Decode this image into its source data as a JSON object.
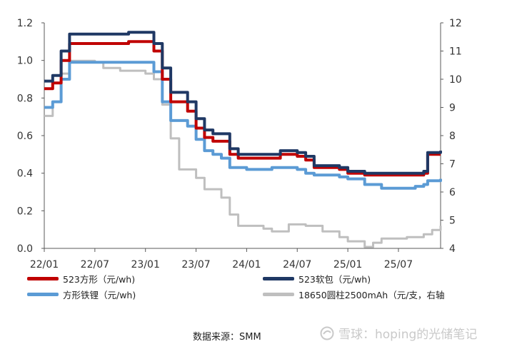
{
  "chart_data": {
    "type": "line",
    "x_ticks": [
      "22/01",
      "22/07",
      "23/01",
      "23/07",
      "24/01",
      "24/07",
      "25/01",
      "25/07"
    ],
    "x_start": "2022-01",
    "x_end": "2025-12",
    "y_left": {
      "ylim": [
        0,
        1.2
      ],
      "ticks": [
        "0.0",
        "0.2",
        "0.4",
        "0.6",
        "0.8",
        "1.0",
        "1.2"
      ]
    },
    "y_right": {
      "ylim": [
        4,
        12
      ],
      "ticks": [
        "4",
        "5",
        "6",
        "7",
        "8",
        "9",
        "10",
        "11",
        "12"
      ]
    },
    "grid": false,
    "legend_placement": "bottom",
    "series": [
      {
        "name": "523方形（元/wh)",
        "color": "#c00000",
        "axis": "left",
        "points": [
          [
            "2022-01",
            0.85
          ],
          [
            "2022-02",
            0.88
          ],
          [
            "2022-03",
            1.0
          ],
          [
            "2022-04",
            1.09
          ],
          [
            "2022-06",
            1.09
          ],
          [
            "2022-09",
            1.09
          ],
          [
            "2022-11",
            1.1
          ],
          [
            "2023-01",
            1.1
          ],
          [
            "2023-02",
            1.05
          ],
          [
            "2023-03",
            0.9
          ],
          [
            "2023-04",
            0.78
          ],
          [
            "2023-06",
            0.73
          ],
          [
            "2023-07",
            0.64
          ],
          [
            "2023-08",
            0.59
          ],
          [
            "2023-09",
            0.57
          ],
          [
            "2023-10",
            0.57
          ],
          [
            "2023-11",
            0.5
          ],
          [
            "2023-12",
            0.48
          ],
          [
            "2024-04",
            0.48
          ],
          [
            "2024-05",
            0.5
          ],
          [
            "2024-07",
            0.49
          ],
          [
            "2024-08",
            0.47
          ],
          [
            "2024-09",
            0.43
          ],
          [
            "2024-12",
            0.42
          ],
          [
            "2025-01",
            0.4
          ],
          [
            "2025-03",
            0.39
          ],
          [
            "2025-06",
            0.39
          ],
          [
            "2025-09",
            0.39
          ],
          [
            "2025-10",
            0.4
          ],
          [
            "2025-10-15",
            0.5
          ],
          [
            "2025-12",
            0.5
          ]
        ]
      },
      {
        "name": "523软包（元/wh)",
        "color": "#1f3864",
        "axis": "left",
        "points": [
          [
            "2022-01",
            0.89
          ],
          [
            "2022-02",
            0.92
          ],
          [
            "2022-03",
            1.05
          ],
          [
            "2022-04",
            1.14
          ],
          [
            "2022-06",
            1.14
          ],
          [
            "2022-09",
            1.14
          ],
          [
            "2022-11",
            1.15
          ],
          [
            "2023-01",
            1.15
          ],
          [
            "2023-02",
            1.09
          ],
          [
            "2023-03",
            0.96
          ],
          [
            "2023-04",
            0.83
          ],
          [
            "2023-06",
            0.78
          ],
          [
            "2023-07",
            0.69
          ],
          [
            "2023-08",
            0.63
          ],
          [
            "2023-09",
            0.61
          ],
          [
            "2023-10",
            0.61
          ],
          [
            "2023-11",
            0.53
          ],
          [
            "2023-12",
            0.5
          ],
          [
            "2024-04",
            0.5
          ],
          [
            "2024-05",
            0.52
          ],
          [
            "2024-07",
            0.51
          ],
          [
            "2024-08",
            0.49
          ],
          [
            "2024-09",
            0.44
          ],
          [
            "2024-12",
            0.43
          ],
          [
            "2025-01",
            0.41
          ],
          [
            "2025-03",
            0.4
          ],
          [
            "2025-06",
            0.4
          ],
          [
            "2025-09",
            0.4
          ],
          [
            "2025-10",
            0.41
          ],
          [
            "2025-10-15",
            0.51
          ],
          [
            "2025-12",
            0.52
          ]
        ]
      },
      {
        "name": "方形铁锂（元/wh)",
        "color": "#5b9bd5",
        "axis": "left",
        "points": [
          [
            "2022-01",
            0.75
          ],
          [
            "2022-02",
            0.78
          ],
          [
            "2022-03",
            0.9
          ],
          [
            "2022-04",
            0.99
          ],
          [
            "2022-09",
            0.99
          ],
          [
            "2022-11",
            0.99
          ],
          [
            "2023-01",
            0.99
          ],
          [
            "2023-02",
            0.94
          ],
          [
            "2023-03",
            0.78
          ],
          [
            "2023-04",
            0.68
          ],
          [
            "2023-06",
            0.65
          ],
          [
            "2023-07",
            0.58
          ],
          [
            "2023-08",
            0.52
          ],
          [
            "2023-09",
            0.5
          ],
          [
            "2023-10",
            0.48
          ],
          [
            "2023-11",
            0.43
          ],
          [
            "2024-01",
            0.42
          ],
          [
            "2024-03",
            0.42
          ],
          [
            "2024-04",
            0.43
          ],
          [
            "2024-07",
            0.42
          ],
          [
            "2024-08",
            0.4
          ],
          [
            "2024-09",
            0.39
          ],
          [
            "2024-12",
            0.38
          ],
          [
            "2025-01",
            0.37
          ],
          [
            "2025-03",
            0.34
          ],
          [
            "2025-05",
            0.32
          ],
          [
            "2025-09",
            0.33
          ],
          [
            "2025-10",
            0.34
          ],
          [
            "2025-10-15",
            0.36
          ],
          [
            "2025-12",
            0.37
          ]
        ]
      },
      {
        "name": "18650圆柱2500mAh（元/支，右轴",
        "color": "#bfbfbf",
        "axis": "right",
        "points": [
          [
            "2022-01",
            8.7
          ],
          [
            "2022-02",
            9.2
          ],
          [
            "2022-03",
            10.2
          ],
          [
            "2022-04",
            10.65
          ],
          [
            "2022-07",
            10.6
          ],
          [
            "2022-08",
            10.4
          ],
          [
            "2022-10",
            10.3
          ],
          [
            "2022-12",
            10.3
          ],
          [
            "2023-01",
            10.2
          ],
          [
            "2023-02",
            10.0
          ],
          [
            "2023-03",
            9.1
          ],
          [
            "2023-04",
            7.9
          ],
          [
            "2023-05",
            6.8
          ],
          [
            "2023-07",
            6.5
          ],
          [
            "2023-08",
            6.1
          ],
          [
            "2023-10",
            5.8
          ],
          [
            "2023-11",
            5.2
          ],
          [
            "2023-12",
            4.8
          ],
          [
            "2024-03",
            4.7
          ],
          [
            "2024-04",
            4.6
          ],
          [
            "2024-06",
            4.85
          ],
          [
            "2024-08",
            4.8
          ],
          [
            "2024-10",
            4.6
          ],
          [
            "2024-12",
            4.4
          ],
          [
            "2025-01",
            4.25
          ],
          [
            "2025-03",
            4.05
          ],
          [
            "2025-04",
            4.2
          ],
          [
            "2025-05",
            4.35
          ],
          [
            "2025-08",
            4.4
          ],
          [
            "2025-10",
            4.5
          ],
          [
            "2025-11",
            4.65
          ],
          [
            "2025-12",
            4.8
          ]
        ]
      }
    ]
  },
  "footer": {
    "source": "数据来源：SMM",
    "watermark": "雪球：hoping的光储笔记"
  },
  "colors": {
    "axis": "#595959"
  }
}
